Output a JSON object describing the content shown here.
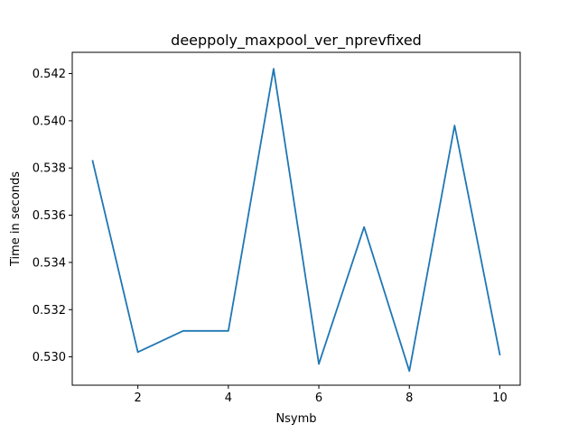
{
  "chart_data": {
    "type": "line",
    "title": "deeppoly_maxpool_ver_nprevfixed",
    "xlabel": "Nsymb",
    "ylabel": "Time in seconds",
    "xlim": [
      0.55,
      10.45
    ],
    "ylim": [
      0.5288,
      0.5429
    ],
    "xticks": [
      2,
      4,
      6,
      8,
      10
    ],
    "yticks": [
      0.53,
      0.532,
      0.534,
      0.536,
      0.538,
      0.54,
      0.542
    ],
    "grid": false,
    "series": [
      {
        "color": "#1f77b4",
        "x": [
          1,
          2,
          3,
          4,
          5,
          6,
          7,
          8,
          9,
          10
        ],
        "y": [
          0.5383,
          0.5302,
          0.5311,
          0.5311,
          0.5422,
          0.5297,
          0.5355,
          0.5294,
          0.5398,
          0.5301
        ]
      }
    ]
  }
}
